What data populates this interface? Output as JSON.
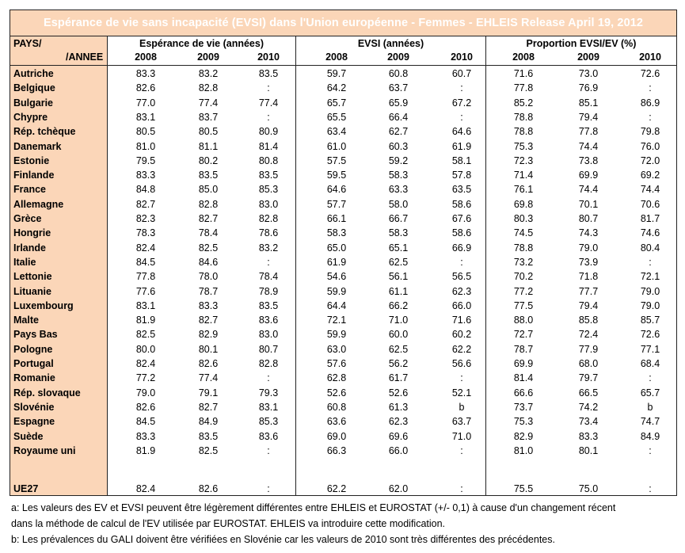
{
  "title": "Espérance de vie sans incapacité (EVSI) dans l'Union européenne - Femmes - EHLEIS Release April 19, 2012",
  "header": {
    "pays": "PAYS/",
    "annee": "/ANNEE",
    "groups": [
      "Espérance de vie (années)",
      "EVSI (années)",
      "Proportion EVSI/EV (%)"
    ],
    "years": [
      "2008",
      "2009",
      "2010",
      "2008",
      "2009",
      "2010",
      "2008",
      "2009",
      "2010"
    ]
  },
  "rows": [
    {
      "country": "Autriche",
      "values": [
        "83.3",
        "83.2",
        "83.5",
        "59.7",
        "60.8",
        "60.7",
        "71.6",
        "73.0",
        "72.6"
      ]
    },
    {
      "country": "Belgique",
      "values": [
        "82.6",
        "82.8",
        ":",
        "64.2",
        "63.7",
        ":",
        "77.8",
        "76.9",
        ":"
      ]
    },
    {
      "country": "Bulgarie",
      "values": [
        "77.0",
        "77.4",
        "77.4",
        "65.7",
        "65.9",
        "67.2",
        "85.2",
        "85.1",
        "86.9"
      ]
    },
    {
      "country": "Chypre",
      "values": [
        "83.1",
        "83.7",
        ":",
        "65.5",
        "66.4",
        ":",
        "78.8",
        "79.4",
        ":"
      ]
    },
    {
      "country": "Rép. tchèque",
      "values": [
        "80.5",
        "80.5",
        "80.9",
        "63.4",
        "62.7",
        "64.6",
        "78.8",
        "77.8",
        "79.8"
      ]
    },
    {
      "country": "Danemark",
      "values": [
        "81.0",
        "81.1",
        "81.4",
        "61.0",
        "60.3",
        "61.9",
        "75.3",
        "74.4",
        "76.0"
      ]
    },
    {
      "country": "Estonie",
      "values": [
        "79.5",
        "80.2",
        "80.8",
        "57.5",
        "59.2",
        "58.1",
        "72.3",
        "73.8",
        "72.0"
      ]
    },
    {
      "country": "Finlande",
      "values": [
        "83.3",
        "83.5",
        "83.5",
        "59.5",
        "58.3",
        "57.8",
        "71.4",
        "69.9",
        "69.2"
      ]
    },
    {
      "country": "France",
      "values": [
        "84.8",
        "85.0",
        "85.3",
        "64.6",
        "63.3",
        "63.5",
        "76.1",
        "74.4",
        "74.4"
      ]
    },
    {
      "country": "Allemagne",
      "values": [
        "82.7",
        "82.8",
        "83.0",
        "57.7",
        "58.0",
        "58.6",
        "69.8",
        "70.1",
        "70.6"
      ]
    },
    {
      "country": "Grèce",
      "values": [
        "82.3",
        "82.7",
        "82.8",
        "66.1",
        "66.7",
        "67.6",
        "80.3",
        "80.7",
        "81.7"
      ]
    },
    {
      "country": "Hongrie",
      "values": [
        "78.3",
        "78.4",
        "78.6",
        "58.3",
        "58.3",
        "58.6",
        "74.5",
        "74.3",
        "74.6"
      ]
    },
    {
      "country": "Irlande",
      "values": [
        "82.4",
        "82.5",
        "83.2",
        "65.0",
        "65.1",
        "66.9",
        "78.8",
        "79.0",
        "80.4"
      ]
    },
    {
      "country": "Italie",
      "values": [
        "84.5",
        "84.6",
        ":",
        "61.9",
        "62.5",
        ":",
        "73.2",
        "73.9",
        ":"
      ]
    },
    {
      "country": "Lettonie",
      "values": [
        "77.8",
        "78.0",
        "78.4",
        "54.6",
        "56.1",
        "56.5",
        "70.2",
        "71.8",
        "72.1"
      ]
    },
    {
      "country": "Lituanie",
      "values": [
        "77.6",
        "78.7",
        "78.9",
        "59.9",
        "61.1",
        "62.3",
        "77.2",
        "77.7",
        "79.0"
      ]
    },
    {
      "country": "Luxembourg",
      "values": [
        "83.1",
        "83.3",
        "83.5",
        "64.4",
        "66.2",
        "66.0",
        "77.5",
        "79.4",
        "79.0"
      ]
    },
    {
      "country": "Malte",
      "values": [
        "81.9",
        "82.7",
        "83.6",
        "72.1",
        "71.0",
        "71.6",
        "88.0",
        "85.8",
        "85.7"
      ]
    },
    {
      "country": "Pays Bas",
      "values": [
        "82.5",
        "82.9",
        "83.0",
        "59.9",
        "60.0",
        "60.2",
        "72.7",
        "72.4",
        "72.6"
      ]
    },
    {
      "country": "Pologne",
      "values": [
        "80.0",
        "80.1",
        "80.7",
        "63.0",
        "62.5",
        "62.2",
        "78.7",
        "77.9",
        "77.1"
      ]
    },
    {
      "country": "Portugal",
      "values": [
        "82.4",
        "82.6",
        "82.8",
        "57.6",
        "56.2",
        "56.6",
        "69.9",
        "68.0",
        "68.4"
      ]
    },
    {
      "country": "Romanie",
      "values": [
        "77.2",
        "77.4",
        ":",
        "62.8",
        "61.7",
        ":",
        "81.4",
        "79.7",
        ":"
      ]
    },
    {
      "country": "Rép. slovaque",
      "values": [
        "79.0",
        "79.1",
        "79.3",
        "52.6",
        "52.6",
        "52.1",
        "66.6",
        "66.5",
        "65.7"
      ]
    },
    {
      "country": "Slovénie",
      "values": [
        "82.6",
        "82.7",
        "83.1",
        "60.8",
        "61.3",
        "b",
        "73.7",
        "74.2",
        "b"
      ]
    },
    {
      "country": "Espagne",
      "values": [
        "84.5",
        "84.9",
        "85.3",
        "63.6",
        "62.3",
        "63.7",
        "75.3",
        "73.4",
        "74.7"
      ]
    },
    {
      "country": "Suède",
      "values": [
        "83.3",
        "83.5",
        "83.6",
        "69.0",
        "69.6",
        "71.0",
        "82.9",
        "83.3",
        "84.9"
      ]
    },
    {
      "country": "Royaume uni",
      "values": [
        "81.9",
        "82.5",
        ":",
        "66.3",
        "66.0",
        ":",
        "81.0",
        "80.1",
        ":"
      ]
    }
  ],
  "total": {
    "country": "UE27",
    "values": [
      "82.4",
      "82.6",
      ":",
      "62.2",
      "62.0",
      ":",
      "75.5",
      "75.0",
      ":"
    ]
  },
  "footnotes": [
    "a: Les valeurs des EV et EVSI peuvent être légèrement différentes entre EHLEIS et EUROSTAT (+/- 0,1) à cause d'un changement récent",
    "dans la méthode de calcul de l'EV utilisée par EUROSTAT. EHLEIS va introduire cette modification.",
    "b: Les prévalences du GALI doivent être vérifiées en Slovénie car les valeurs de 2010 sont très différentes des précédentes."
  ]
}
